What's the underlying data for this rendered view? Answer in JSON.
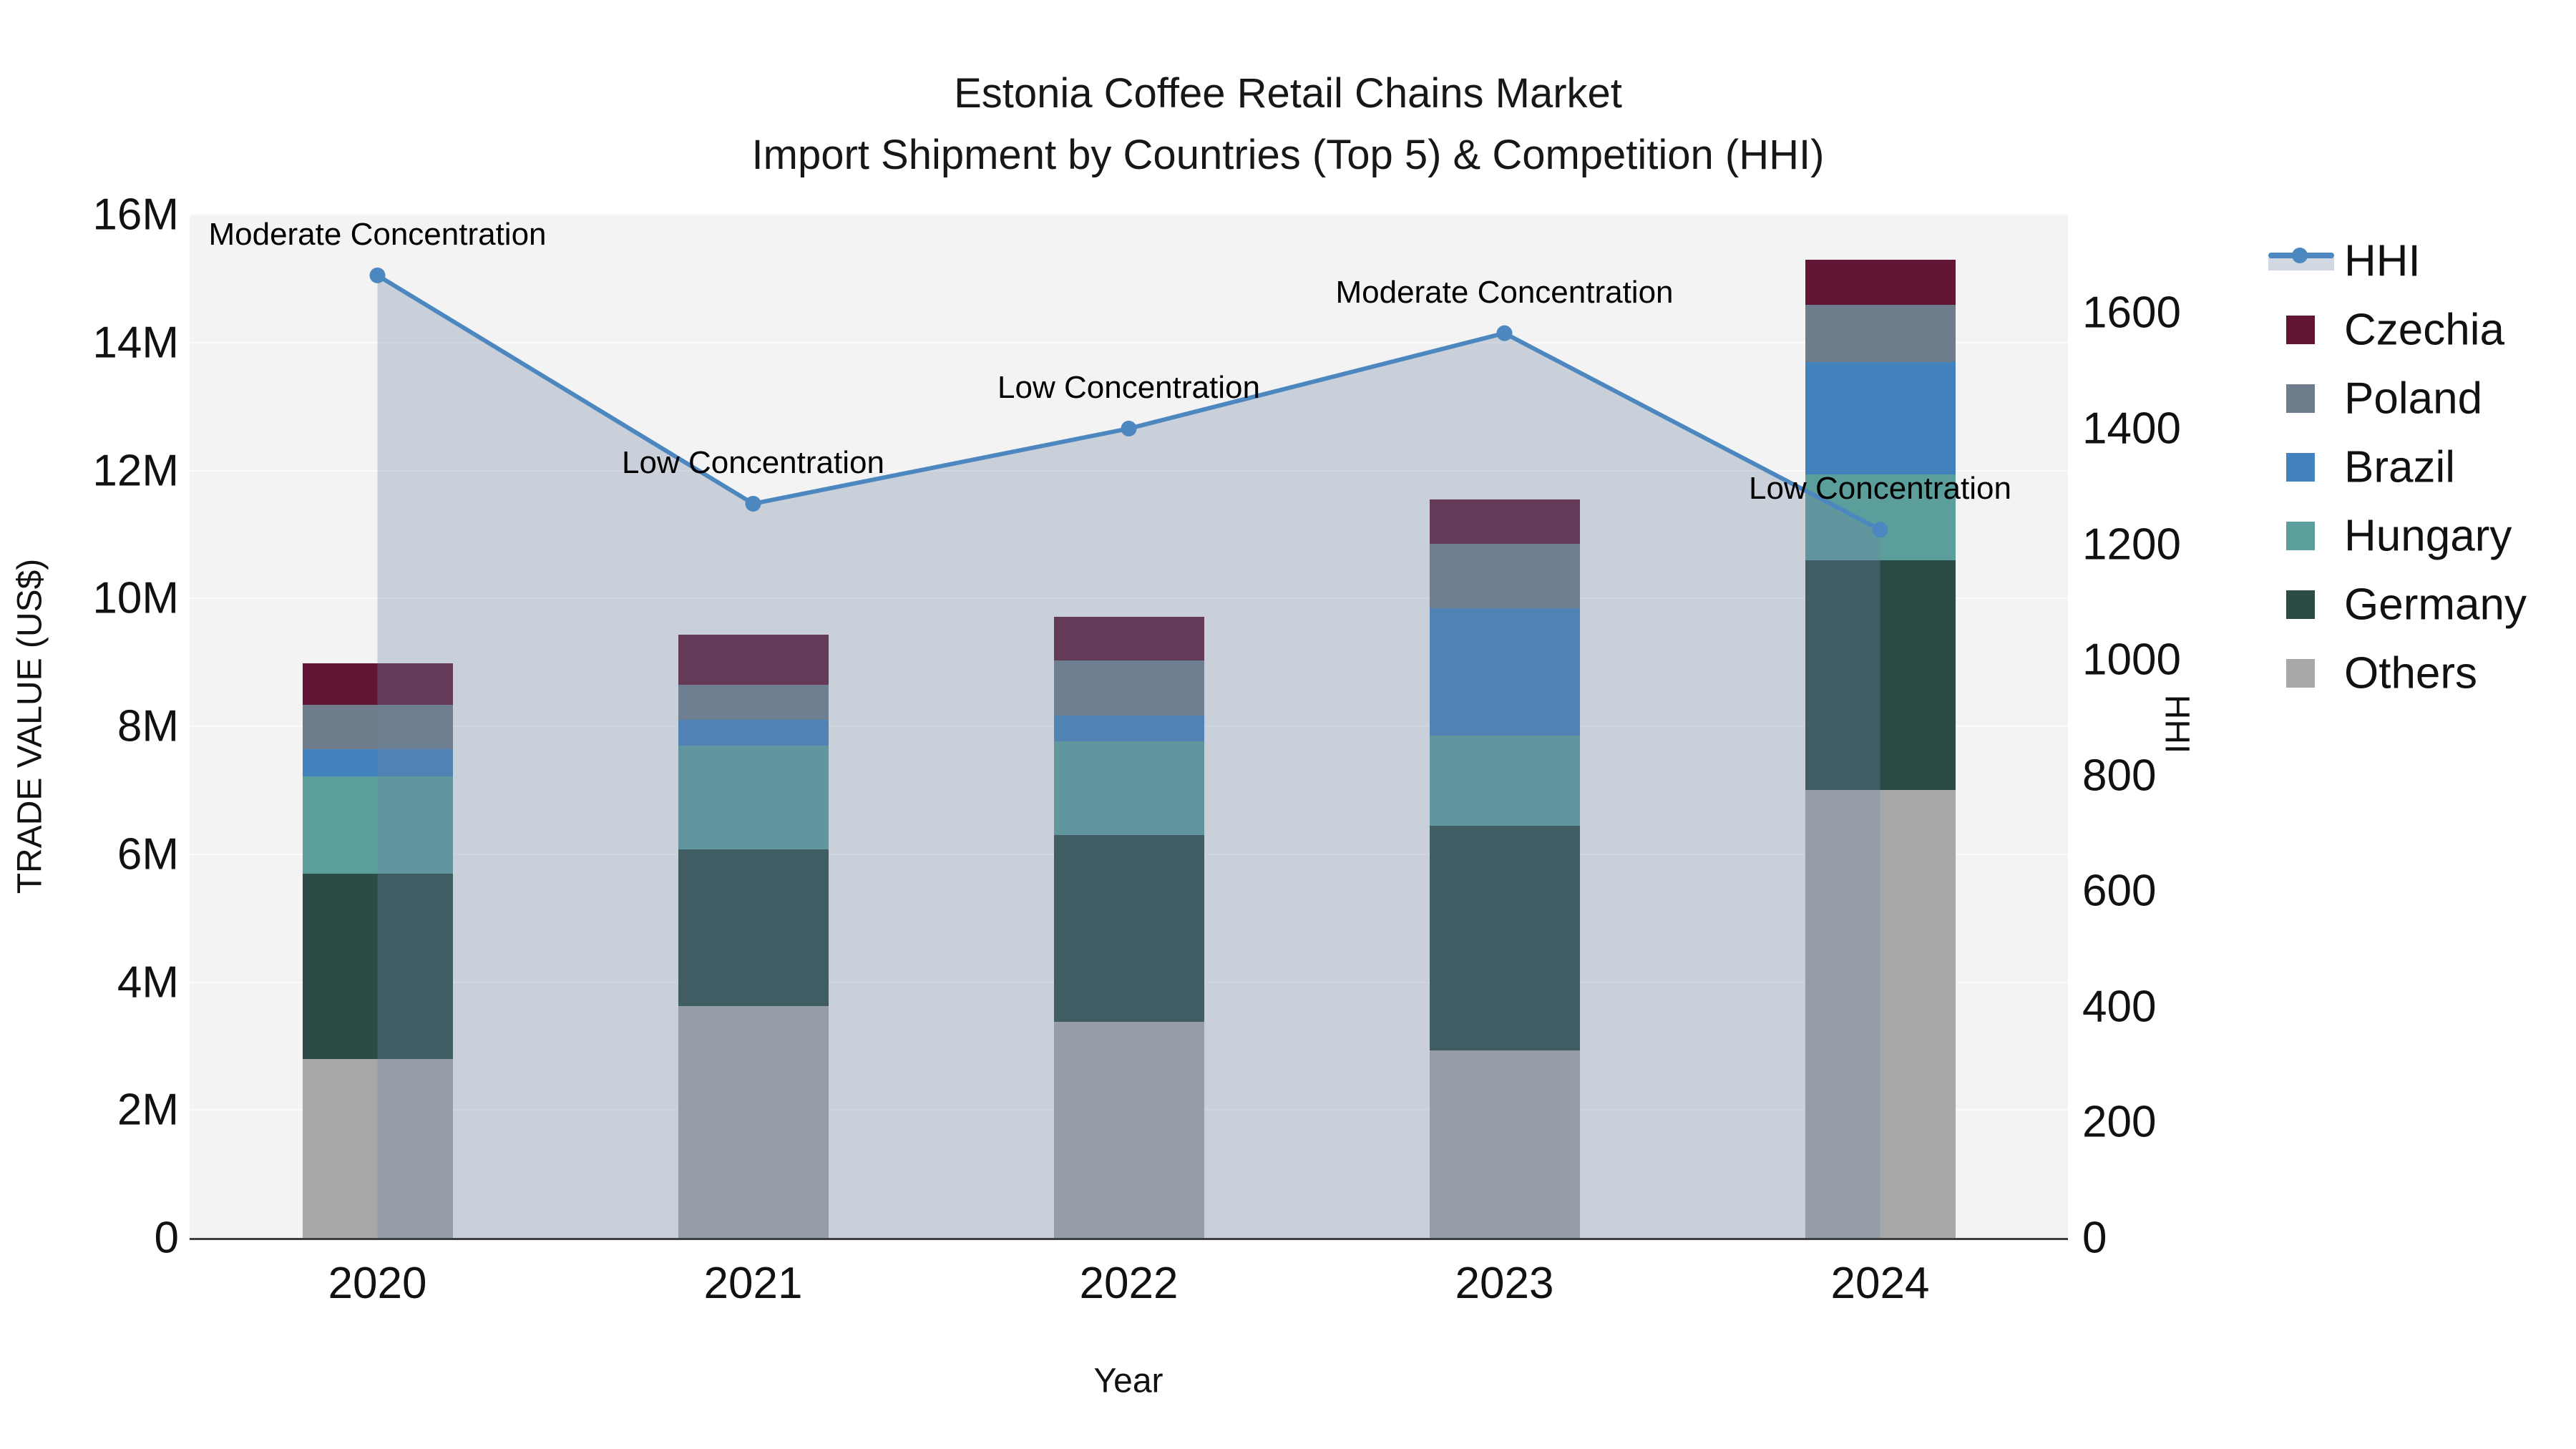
{
  "title": {
    "line1": "Estonia Coffee Retail Chains Market",
    "line2": "Import Shipment by Countries (Top 5) & Competition (HHI)"
  },
  "axes": {
    "x": {
      "title": "Year",
      "ticks": [
        "2020",
        "2021",
        "2022",
        "2023",
        "2024"
      ]
    },
    "y_left": {
      "title": "TRADE VALUE (US$)",
      "ticks": [
        "0",
        "2M",
        "4M",
        "6M",
        "8M",
        "10M",
        "12M",
        "14M",
        "16M"
      ],
      "range_millions": [
        0,
        16
      ]
    },
    "y_right": {
      "title": "HHI",
      "ticks": [
        "0",
        "200",
        "400",
        "600",
        "800",
        "1000",
        "1200",
        "1400",
        "1600"
      ],
      "range": [
        0,
        1770
      ]
    }
  },
  "legend": {
    "items": [
      {
        "label": "HHI",
        "type": "line",
        "color": "#4d87bf"
      },
      {
        "label": "Czechia",
        "type": "swatch",
        "color": "#611635"
      },
      {
        "label": "Poland",
        "type": "swatch",
        "color": "#6e7c8b"
      },
      {
        "label": "Brazil",
        "type": "swatch",
        "color": "#4282bd"
      },
      {
        "label": "Hungary",
        "type": "swatch",
        "color": "#5c9e9c"
      },
      {
        "label": "Germany",
        "type": "swatch",
        "color": "#2c4b47"
      },
      {
        "label": "Others",
        "type": "swatch",
        "color": "#a7a9a9"
      }
    ]
  },
  "chart_data": {
    "type": "bar+line",
    "title": "Estonia Coffee Retail Chains Market — Import Shipment by Countries (Top 5) & Competition (HHI)",
    "categories": [
      "2020",
      "2021",
      "2022",
      "2023",
      "2024"
    ],
    "bar_unit": "US$ millions (stacked, left axis)",
    "series": [
      {
        "name": "Czechia",
        "color": "#611635",
        "values": [
          0.65,
          0.78,
          0.68,
          0.7,
          0.7
        ]
      },
      {
        "name": "Poland",
        "color": "#6e7c8b",
        "values": [
          0.7,
          0.55,
          0.86,
          1.0,
          0.9
        ]
      },
      {
        "name": "Brazil",
        "color": "#4282bd",
        "values": [
          0.42,
          0.4,
          0.4,
          2.0,
          1.75
        ]
      },
      {
        "name": "Hungary",
        "color": "#5c9e9c",
        "values": [
          1.52,
          1.62,
          1.47,
          1.4,
          1.34
        ]
      },
      {
        "name": "Germany",
        "color": "#2c4b47",
        "values": [
          2.9,
          2.45,
          2.92,
          3.52,
          3.6
        ]
      },
      {
        "name": "Others",
        "color": "#a7a9a9",
        "values": [
          2.8,
          3.63,
          3.38,
          2.93,
          7.0
        ]
      }
    ],
    "stack_totals_millions": [
      8.99,
      9.43,
      9.71,
      11.55,
      15.29
    ],
    "line_series": {
      "name": "HHI",
      "color": "#4d87bf",
      "axis": "right",
      "values": [
        1665,
        1270,
        1400,
        1565,
        1225
      ],
      "area_fill": "rgba(112,134,163,0.32)"
    },
    "annotations": [
      {
        "x": "2020",
        "text": "Moderate Concentration"
      },
      {
        "x": "2021",
        "text": "Low Concentration"
      },
      {
        "x": "2022",
        "text": "Low Concentration"
      },
      {
        "x": "2023",
        "text": "Moderate Concentration"
      },
      {
        "x": "2024",
        "text": "Low Concentration"
      }
    ],
    "layout_hints": {
      "ylim_left_millions": [
        0,
        16
      ],
      "ylim_right": [
        0,
        1770
      ],
      "grid": true,
      "legend_position": "right",
      "plot_bg": "#f3f3f4"
    }
  }
}
